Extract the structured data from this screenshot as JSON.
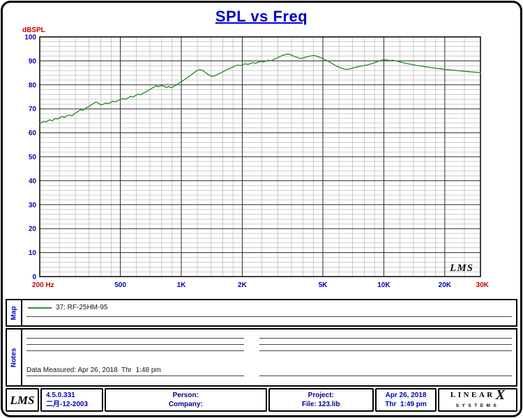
{
  "chart": {
    "title": "SPL vs Freq",
    "y_axis_label": "dBSPL",
    "watermark": "LMS",
    "colors": {
      "title": "#0000cc",
      "axis_label": "#cc0000",
      "tick": "#0000bb",
      "grid_major": "#2a2a2a",
      "grid_minor": "#9a9a9a",
      "curve": "#2e8f2e",
      "border": "#000000"
    }
  },
  "chart_data": {
    "type": "line",
    "title": "SPL vs Freq",
    "xlabel": "Hz",
    "ylabel": "dBSPL",
    "x_scale": "log",
    "xlim": [
      200,
      30000
    ],
    "ylim": [
      0,
      100
    ],
    "y_major_step": 10,
    "y_minor_step": 2,
    "grid": true,
    "legend_position": "map-panel-below",
    "y_tick_labels": [
      100,
      90,
      80,
      70,
      60,
      50,
      40,
      30,
      20,
      10,
      0
    ],
    "x_ticks": [
      {
        "f": 200,
        "label": "200 Hz"
      },
      {
        "f": 500,
        "label": "500"
      },
      {
        "f": 1000,
        "label": "1K"
      },
      {
        "f": 2000,
        "label": "2K"
      },
      {
        "f": 5000,
        "label": "5K"
      },
      {
        "f": 10000,
        "label": "10K"
      },
      {
        "f": 20000,
        "label": "20K"
      },
      {
        "f": 30000,
        "label": "30K"
      }
    ],
    "x_grid_minor": [
      250,
      300,
      350,
      400,
      450,
      600,
      700,
      800,
      900,
      1200,
      1400,
      1600,
      1800,
      2500,
      3000,
      3500,
      4000,
      4500,
      6000,
      7000,
      8000,
      9000,
      12000,
      14000,
      16000,
      18000,
      25000
    ],
    "series": [
      {
        "name": "37: RF-25HM-95",
        "color": "#2e8f2e",
        "points": [
          [
            200,
            64.0
          ],
          [
            205,
            64.4
          ],
          [
            210,
            64.8
          ],
          [
            215,
            64.5
          ],
          [
            220,
            65.1
          ],
          [
            225,
            65.4
          ],
          [
            230,
            65.0
          ],
          [
            235,
            65.6
          ],
          [
            240,
            66.0
          ],
          [
            245,
            65.7
          ],
          [
            250,
            66.3
          ],
          [
            258,
            66.8
          ],
          [
            265,
            66.4
          ],
          [
            272,
            67.0
          ],
          [
            280,
            67.4
          ],
          [
            288,
            67.1
          ],
          [
            295,
            67.8
          ],
          [
            303,
            68.4
          ],
          [
            310,
            69.0
          ],
          [
            318,
            69.6
          ],
          [
            326,
            69.3
          ],
          [
            335,
            70.1
          ],
          [
            344,
            70.7
          ],
          [
            353,
            71.2
          ],
          [
            362,
            71.8
          ],
          [
            371,
            72.4
          ],
          [
            380,
            72.9
          ],
          [
            390,
            72.3
          ],
          [
            400,
            71.7
          ],
          [
            412,
            71.9
          ],
          [
            424,
            72.4
          ],
          [
            436,
            72.1
          ],
          [
            448,
            72.7
          ],
          [
            461,
            73.2
          ],
          [
            474,
            72.9
          ],
          [
            488,
            73.5
          ],
          [
            500,
            73.8
          ],
          [
            515,
            74.3
          ],
          [
            530,
            74.0
          ],
          [
            546,
            74.6
          ],
          [
            562,
            75.2
          ],
          [
            578,
            74.9
          ],
          [
            595,
            75.6
          ],
          [
            613,
            76.2
          ],
          [
            631,
            75.9
          ],
          [
            650,
            76.5
          ],
          [
            669,
            77.1
          ],
          [
            689,
            77.7
          ],
          [
            709,
            78.4
          ],
          [
            730,
            79.0
          ],
          [
            752,
            79.6
          ],
          [
            774,
            79.2
          ],
          [
            797,
            79.8
          ],
          [
            820,
            79.4
          ],
          [
            844,
            78.9
          ],
          [
            869,
            79.3
          ],
          [
            895,
            78.8
          ],
          [
            921,
            79.4
          ],
          [
            948,
            80.1
          ],
          [
            976,
            80.8
          ],
          [
            1005,
            81.4
          ],
          [
            1034,
            82.1
          ],
          [
            1065,
            82.9
          ],
          [
            1096,
            83.6
          ],
          [
            1128,
            84.4
          ],
          [
            1161,
            85.2
          ],
          [
            1195,
            85.9
          ],
          [
            1230,
            86.4
          ],
          [
            1266,
            86.1
          ],
          [
            1303,
            85.4
          ],
          [
            1341,
            84.6
          ],
          [
            1381,
            83.9
          ],
          [
            1421,
            83.5
          ],
          [
            1463,
            83.8
          ],
          [
            1506,
            84.3
          ],
          [
            1550,
            84.8
          ],
          [
            1596,
            85.3
          ],
          [
            1643,
            85.9
          ],
          [
            1691,
            86.4
          ],
          [
            1741,
            86.9
          ],
          [
            1792,
            87.4
          ],
          [
            1844,
            87.9
          ],
          [
            1898,
            88.3
          ],
          [
            1954,
            88.0
          ],
          [
            2011,
            88.4
          ],
          [
            2070,
            88.8
          ],
          [
            2131,
            88.5
          ],
          [
            2194,
            88.9
          ],
          [
            2258,
            89.3
          ],
          [
            2324,
            89.0
          ],
          [
            2392,
            89.4
          ],
          [
            2462,
            89.8
          ],
          [
            2534,
            89.5
          ],
          [
            2609,
            89.9
          ],
          [
            2685,
            90.3
          ],
          [
            2764,
            90.0
          ],
          [
            2845,
            90.5
          ],
          [
            2929,
            91.0
          ],
          [
            3015,
            91.5
          ],
          [
            3103,
            92.0
          ],
          [
            3194,
            92.4
          ],
          [
            3288,
            92.7
          ],
          [
            3384,
            92.9
          ],
          [
            3483,
            92.5
          ],
          [
            3585,
            92.0
          ],
          [
            3690,
            91.6
          ],
          [
            3798,
            91.2
          ],
          [
            3909,
            91.0
          ],
          [
            4024,
            91.3
          ],
          [
            4142,
            91.6
          ],
          [
            4263,
            91.9
          ],
          [
            4388,
            92.1
          ],
          [
            4517,
            92.3
          ],
          [
            4649,
            92.0
          ],
          [
            4785,
            91.6
          ],
          [
            4925,
            91.2
          ],
          [
            5069,
            90.7
          ],
          [
            5218,
            90.2
          ],
          [
            5371,
            89.6
          ],
          [
            5528,
            89.0
          ],
          [
            5690,
            88.4
          ],
          [
            5857,
            87.8
          ],
          [
            6029,
            87.3
          ],
          [
            6206,
            86.9
          ],
          [
            6388,
            86.6
          ],
          [
            6575,
            86.4
          ],
          [
            6768,
            86.6
          ],
          [
            6966,
            86.9
          ],
          [
            7170,
            87.2
          ],
          [
            7380,
            87.5
          ],
          [
            7596,
            87.7
          ],
          [
            7818,
            87.9
          ],
          [
            8047,
            88.1
          ],
          [
            8283,
            88.3
          ],
          [
            8526,
            88.6
          ],
          [
            8776,
            88.9
          ],
          [
            9033,
            89.3
          ],
          [
            9298,
            89.7
          ],
          [
            9570,
            90.1
          ],
          [
            9851,
            90.4
          ],
          [
            10140,
            90.5
          ],
          [
            10437,
            90.3
          ],
          [
            10743,
            90.1
          ],
          [
            11058,
            90.3
          ],
          [
            11382,
            90.0
          ],
          [
            11716,
            89.8
          ],
          [
            12059,
            89.5
          ],
          [
            12412,
            89.3
          ],
          [
            12776,
            89.0
          ],
          [
            13150,
            88.8
          ],
          [
            13536,
            88.6
          ],
          [
            13932,
            88.4
          ],
          [
            14340,
            88.2
          ],
          [
            14761,
            88.0
          ],
          [
            15193,
            87.9
          ],
          [
            15638,
            87.7
          ],
          [
            16097,
            87.5
          ],
          [
            16568,
            87.4
          ],
          [
            17054,
            87.2
          ],
          [
            17554,
            87.1
          ],
          [
            18068,
            86.9
          ],
          [
            18597,
            86.8
          ],
          [
            19142,
            86.7
          ],
          [
            19703,
            86.5
          ],
          [
            20280,
            86.4
          ],
          [
            20874,
            86.3
          ],
          [
            21486,
            86.2
          ],
          [
            22116,
            86.1
          ],
          [
            22764,
            86.0
          ],
          [
            23431,
            85.9
          ],
          [
            24117,
            85.8
          ],
          [
            24824,
            85.7
          ],
          [
            25551,
            85.6
          ],
          [
            26300,
            85.5
          ],
          [
            27071,
            85.4
          ],
          [
            27864,
            85.3
          ],
          [
            28680,
            85.2
          ],
          [
            29520,
            85.1
          ],
          [
            30000,
            85.0
          ]
        ]
      }
    ]
  },
  "map": {
    "label": "Map",
    "legend": [
      {
        "name": "37: RF-25HM-95",
        "color": "#2e8f2e"
      }
    ]
  },
  "notes": {
    "label": "Notes",
    "data_measured": "Data Measured: Apr 26, 2018  Thr  1:48 pm"
  },
  "footer": {
    "logo": "LMS",
    "version": "4.5.0.331",
    "version_date": "二月-12-2003",
    "person_label": "Person:",
    "company_label": "Company:",
    "project_label": "Project:",
    "file_label": "File: 123.lib",
    "date": "Apr 26, 2018",
    "time": "Thr  1:49 pm",
    "brand_top": "LINEAR",
    "brand_x": "X",
    "brand_bottom": "SYSTEMS"
  }
}
